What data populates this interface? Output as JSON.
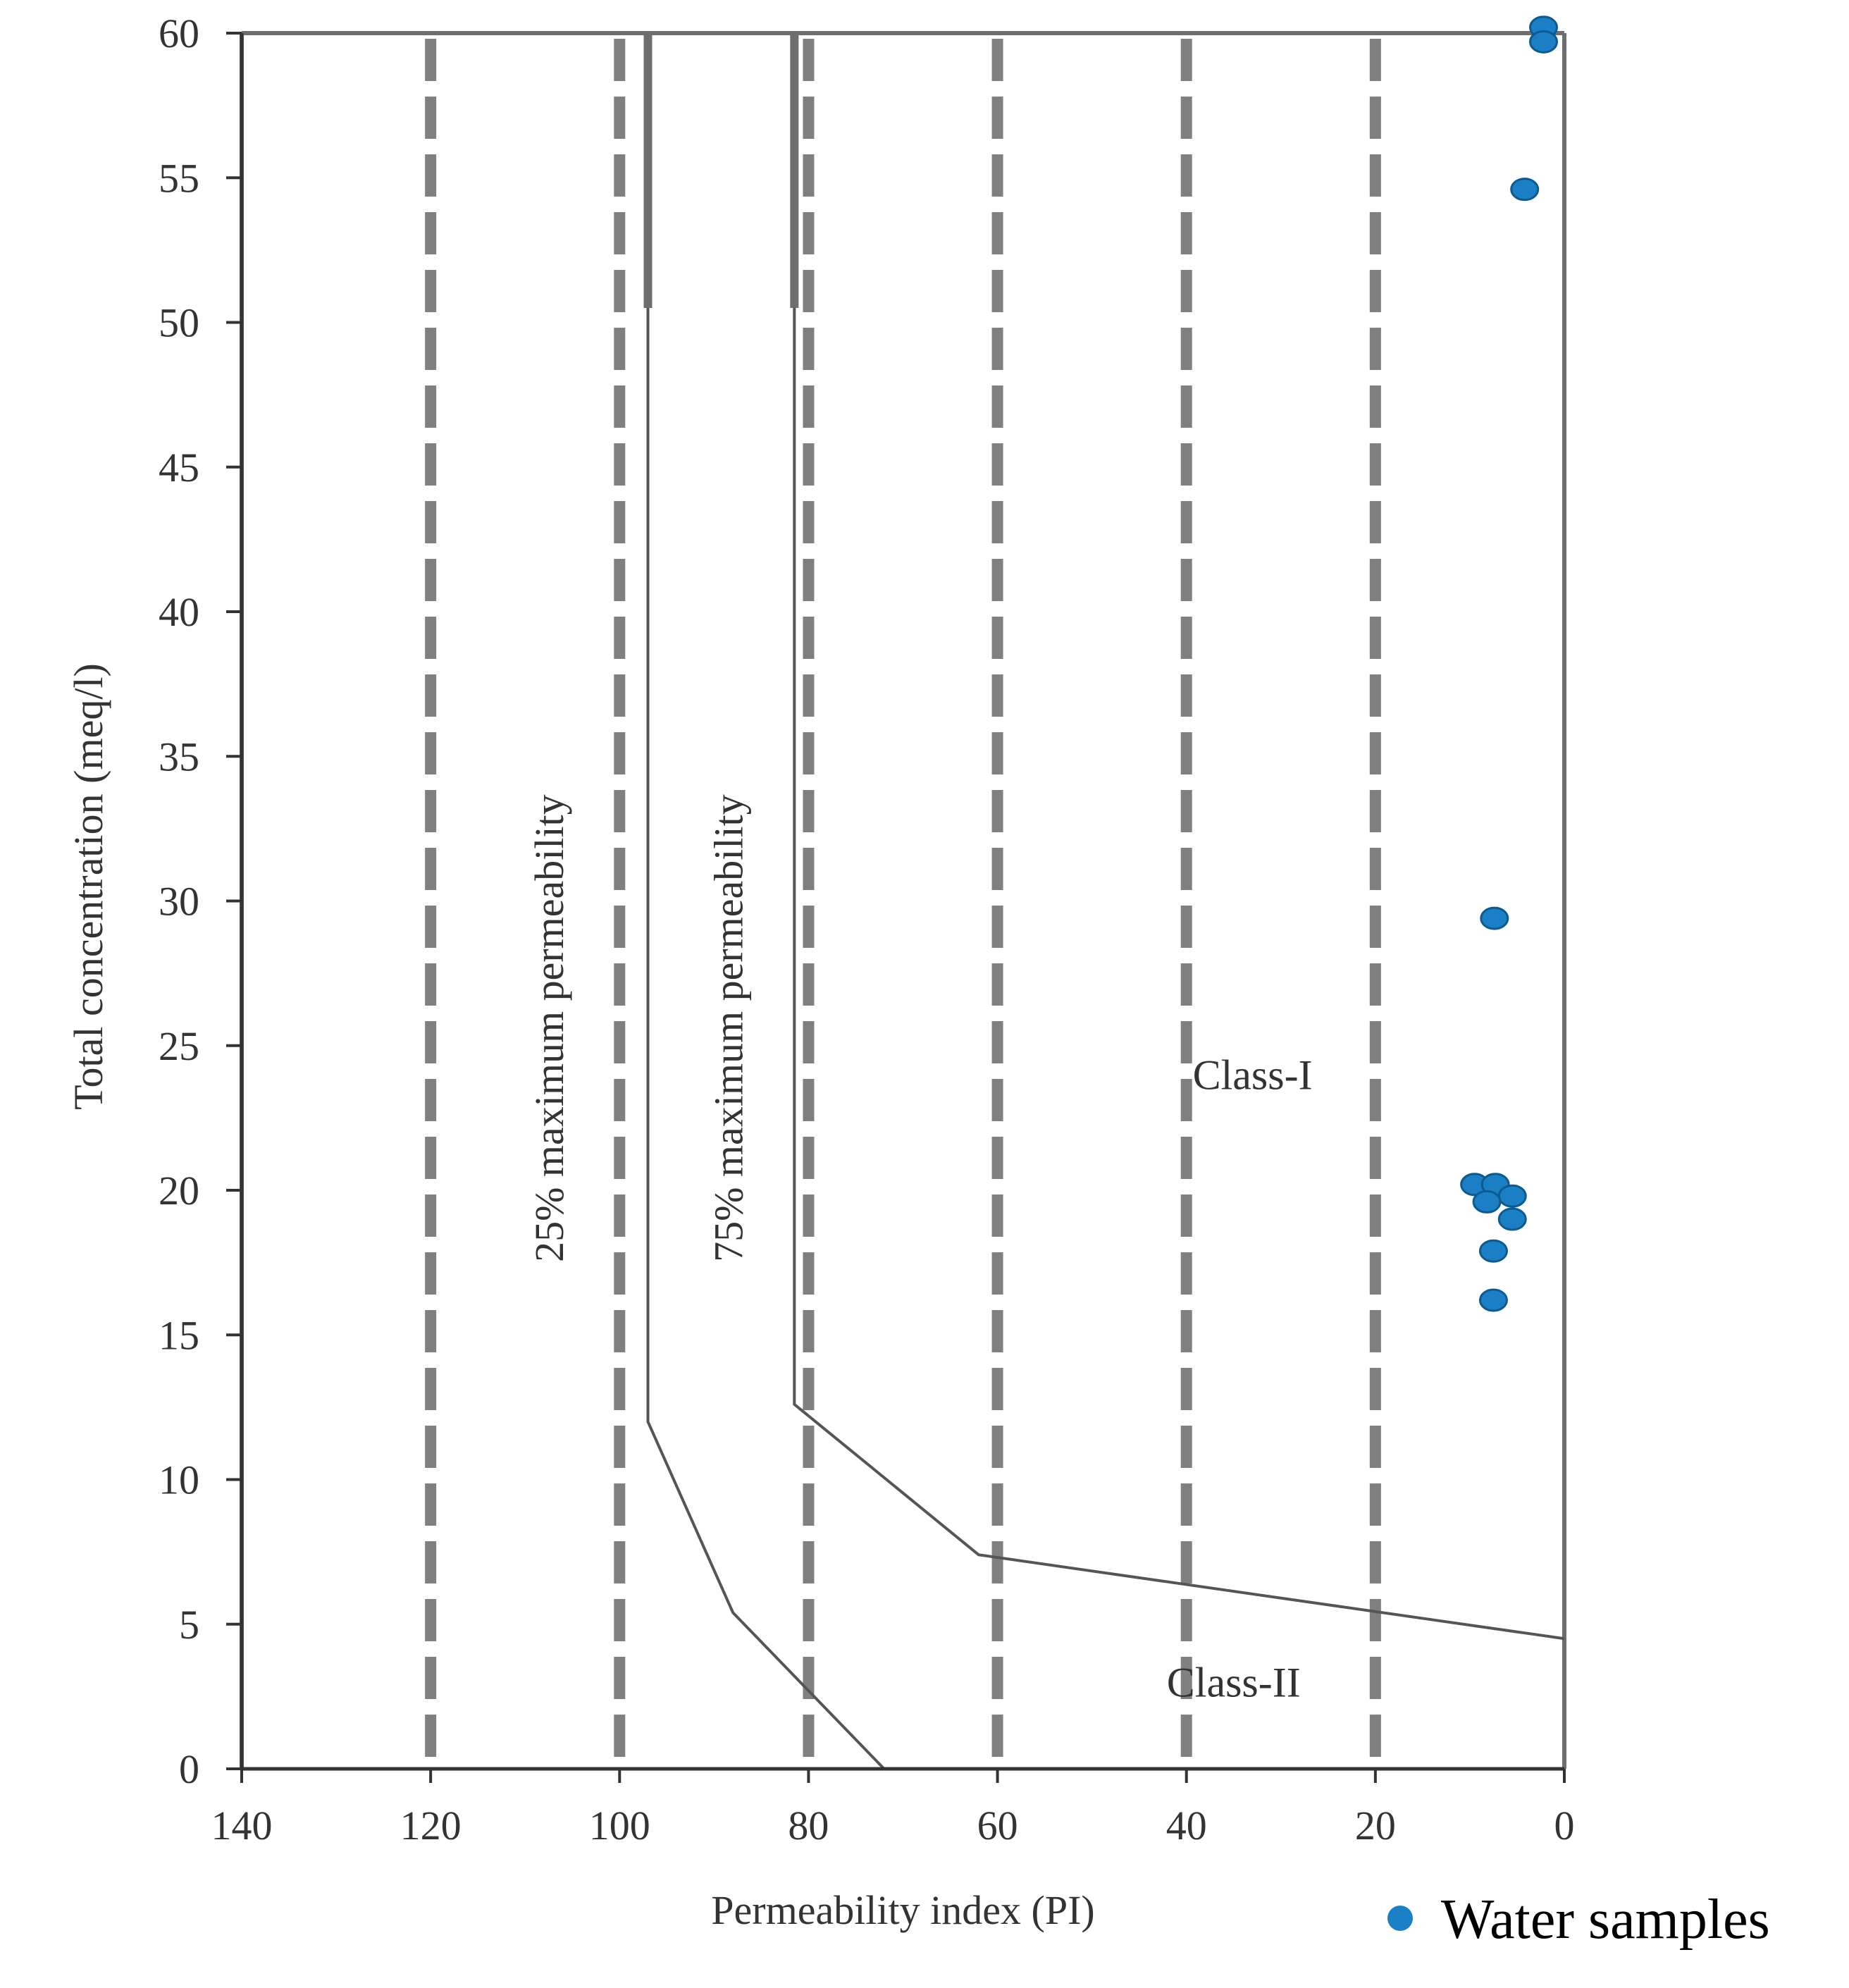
{
  "chart_data": {
    "type": "scatter",
    "title": "",
    "xlabel": "Permeability index (PI)",
    "ylabel": "Total concentration (meq/l)",
    "x_ticks": [
      140,
      120,
      100,
      80,
      60,
      40,
      20,
      0
    ],
    "y_ticks": [
      0,
      5,
      10,
      15,
      20,
      25,
      30,
      35,
      40,
      45,
      50,
      55,
      60
    ],
    "x_reversed": true,
    "xlim": [
      140,
      0
    ],
    "ylim": [
      0,
      60
    ],
    "grid_x": [
      120,
      100,
      80,
      60,
      40,
      20
    ],
    "boundaries": [
      {
        "name": "25% maximum permeability",
        "points": [
          [
            97,
            60
          ],
          [
            97,
            12
          ],
          [
            88,
            5.4
          ],
          [
            72,
            0
          ]
        ]
      },
      {
        "name": "75% maximum permeability",
        "points": [
          [
            81.5,
            60
          ],
          [
            81.5,
            12.6
          ],
          [
            62,
            7.4
          ],
          [
            0,
            4.5
          ]
        ]
      }
    ],
    "curve_labels": [
      {
        "text": "25% maximum permeability",
        "x": 106,
        "y": 25.6
      },
      {
        "text": "75% maximum permeability",
        "x": 87,
        "y": 25.6
      }
    ],
    "regions": [
      {
        "label": "Class-I",
        "x": 33,
        "y": 23.5
      },
      {
        "label": "Class-II",
        "x": 35,
        "y": 2.5
      }
    ],
    "series": [
      {
        "name": "Water samples",
        "color": "#1a7fc4",
        "points": [
          {
            "x": 2.2,
            "y": 60.2
          },
          {
            "x": 2.2,
            "y": 59.7
          },
          {
            "x": 4.2,
            "y": 54.6
          },
          {
            "x": 7.4,
            "y": 29.4
          },
          {
            "x": 9.5,
            "y": 20.2
          },
          {
            "x": 7.3,
            "y": 20.2
          },
          {
            "x": 5.5,
            "y": 19.8
          },
          {
            "x": 8.2,
            "y": 19.6
          },
          {
            "x": 5.5,
            "y": 19.0
          },
          {
            "x": 7.5,
            "y": 17.9
          },
          {
            "x": 7.5,
            "y": 16.2
          }
        ]
      }
    ],
    "legend": {
      "label": "Water samples",
      "position": "bottom-right"
    }
  }
}
